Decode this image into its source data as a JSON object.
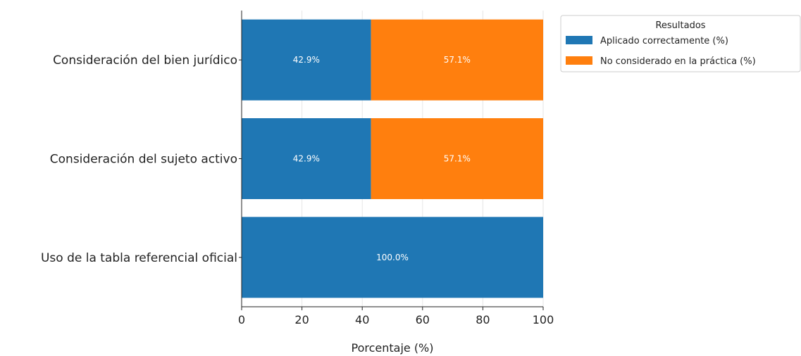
{
  "chart_data": {
    "type": "bar",
    "orientation": "horizontal",
    "stacked": true,
    "categories": [
      "Consideración del bien jurídico",
      "Consideración del sujeto activo",
      "Uso de la tabla referencial oficial"
    ],
    "series": [
      {
        "name": "Aplicado correctamente (%)",
        "values": [
          42.9,
          42.9,
          100.0
        ],
        "color": "#1f77b4"
      },
      {
        "name": "No considerado en la práctica (%)",
        "values": [
          57.1,
          57.1,
          0
        ],
        "color": "#ff7f0e"
      }
    ],
    "data_labels": [
      [
        "42.9%",
        "42.9%",
        "100.0%"
      ],
      [
        "57.1%",
        "57.1%",
        ""
      ]
    ],
    "xlabel": "Porcentaje (%)",
    "ylabel": "",
    "xlim": [
      0,
      100
    ],
    "xticks": [
      0,
      20,
      40,
      60,
      80,
      100
    ],
    "grid": true,
    "legend": {
      "title": "Resultados",
      "placement": "outside-top-right"
    }
  }
}
